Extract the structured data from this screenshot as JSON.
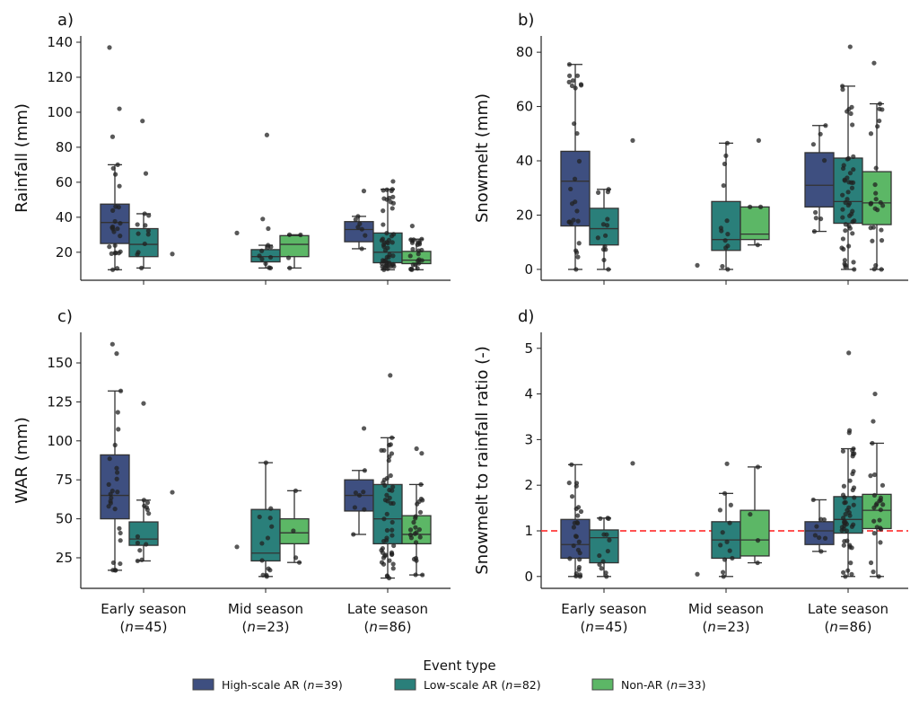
{
  "legend": {
    "title": "Event type",
    "items": [
      {
        "label_pre": "High-scale AR (",
        "n_sym": "n",
        "label_post": "=39)",
        "color": "#3e4f80"
      },
      {
        "label_pre": "Low-scale AR (",
        "n_sym": "n",
        "label_post": "=82)",
        "color": "#2a7f7a"
      },
      {
        "label_pre": "Non-AR (",
        "n_sym": "n",
        "label_post": "=33)",
        "color": "#5cb766"
      }
    ]
  },
  "categories": [
    {
      "label": "Early season",
      "n_pre": "(",
      "n_sym": "n",
      "n_post": "=45)"
    },
    {
      "label": "Mid season",
      "n_pre": "(",
      "n_sym": "n",
      "n_post": "=23)"
    },
    {
      "label": "Late season",
      "n_pre": "(",
      "n_sym": "n",
      "n_post": "=86)"
    }
  ],
  "chart_data": [
    {
      "type": "box",
      "panel": "a)",
      "ylabel": "Rainfall (mm)",
      "ylim": [
        4,
        143.6
      ],
      "yticks": [
        20,
        40,
        60,
        80,
        100,
        120,
        140
      ],
      "show_xticklabels": false,
      "groups": [
        [
          {
            "min": 10,
            "q1": 25,
            "med": 37,
            "q3": 47.5,
            "max": 70,
            "out": [
              137,
              102,
              86
            ],
            "n": 27
          },
          {
            "min": 11,
            "q1": 17.5,
            "med": 24.5,
            "q3": 33.5,
            "max": 42,
            "out": [
              95,
              65
            ],
            "n": 13
          },
          {
            "single": 19
          }
        ],
        [
          {
            "single": 31
          },
          {
            "min": 11,
            "q1": 14.5,
            "med": 17.5,
            "q3": 21.5,
            "max": 24,
            "out": [
              87,
              39,
              33.5
            ],
            "n": 13
          },
          {
            "min": 11,
            "q1": 17.5,
            "med": 24.5,
            "q3": 29.5,
            "max": 30,
            "out": [],
            "n": 4
          }
        ],
        [
          {
            "min": 22,
            "q1": 26,
            "med": 33,
            "q3": 37.5,
            "max": 40.5,
            "out": [
              55
            ],
            "n": 8
          },
          {
            "min": 10,
            "q1": 14,
            "med": 20,
            "q3": 31,
            "max": 56,
            "out": [
              60.5
            ],
            "n": 50
          },
          {
            "min": 10,
            "q1": 13.5,
            "med": 15.5,
            "q3": 20.5,
            "max": 27.5,
            "out": [
              35
            ],
            "n": 25
          }
        ]
      ]
    },
    {
      "type": "box",
      "panel": "b)",
      "ylabel": "Snowmelt (mm)",
      "ylim": [
        -4,
        86
      ],
      "yticks": [
        0,
        20,
        40,
        60,
        80
      ],
      "show_xticklabels": false,
      "groups": [
        [
          {
            "min": 0,
            "q1": 16,
            "med": 32.5,
            "q3": 43.5,
            "max": 75.5,
            "out": [],
            "n": 27
          },
          {
            "min": 0,
            "q1": 9,
            "med": 15,
            "q3": 22.5,
            "max": 29.5,
            "out": [],
            "n": 13
          },
          {
            "single": 47.5
          }
        ],
        [
          {
            "single": 1.5
          },
          {
            "min": 0,
            "q1": 7,
            "med": 11,
            "q3": 25,
            "max": 46.5,
            "out": [],
            "n": 13
          },
          {
            "min": 9,
            "q1": 11,
            "med": 13,
            "q3": 23,
            "max": 23,
            "out": [
              47.5
            ],
            "n": 4
          }
        ],
        [
          {
            "min": 14,
            "q1": 23,
            "med": 31,
            "q3": 43,
            "max": 53,
            "out": [],
            "n": 8
          },
          {
            "min": 0,
            "q1": 17,
            "med": 25,
            "q3": 41,
            "max": 67.5,
            "out": [
              82
            ],
            "n": 50
          },
          {
            "min": 0,
            "q1": 16.5,
            "med": 24.5,
            "q3": 36,
            "max": 61,
            "out": [
              76
            ],
            "n": 25
          }
        ]
      ]
    },
    {
      "type": "box",
      "panel": "c)",
      "ylabel": "WAR (mm)",
      "ylim": [
        5.4,
        169.6
      ],
      "yticks": [
        25,
        50,
        75,
        100,
        125,
        150
      ],
      "show_xticklabels": true,
      "groups": [
        [
          {
            "min": 17,
            "q1": 50,
            "med": 65,
            "q3": 91,
            "max": 132,
            "out": [
              162,
              156
            ],
            "n": 27
          },
          {
            "min": 23,
            "q1": 33,
            "med": 37,
            "q3": 48,
            "max": 62,
            "out": [
              124
            ],
            "n": 13
          },
          {
            "single": 67
          }
        ],
        [
          {
            "single": 32
          },
          {
            "min": 13,
            "q1": 23,
            "med": 28,
            "q3": 56,
            "max": 86,
            "out": [],
            "n": 13
          },
          {
            "min": 22,
            "q1": 34,
            "med": 41,
            "q3": 50,
            "max": 68,
            "out": [],
            "n": 4
          }
        ],
        [
          {
            "min": 40,
            "q1": 55,
            "med": 65,
            "q3": 75,
            "max": 81,
            "out": [
              108
            ],
            "n": 8
          },
          {
            "min": 12,
            "q1": 34,
            "med": 50,
            "q3": 72,
            "max": 102,
            "out": [
              142
            ],
            "n": 50
          },
          {
            "min": 14,
            "q1": 34,
            "med": 40,
            "q3": 52,
            "max": 72,
            "out": [
              95,
              92
            ],
            "n": 25
          }
        ]
      ]
    },
    {
      "type": "box",
      "panel": "d)",
      "ylabel": "Snowmelt to rainfall ratio (-)",
      "ylim": [
        -0.26,
        5.35
      ],
      "yticks": [
        0,
        1,
        2,
        3,
        4,
        5
      ],
      "show_xticklabels": true,
      "reference_line": {
        "y": 1,
        "color": "#ff3b3b",
        "style": "dashed"
      },
      "groups": [
        [
          {
            "min": 0,
            "q1": 0.4,
            "med": 0.7,
            "q3": 1.25,
            "max": 2.45,
            "out": [],
            "n": 27
          },
          {
            "min": 0,
            "q1": 0.3,
            "med": 0.85,
            "q3": 1.02,
            "max": 1.28,
            "out": [],
            "n": 13
          },
          {
            "single": 2.48
          }
        ],
        [
          {
            "single": 0.05
          },
          {
            "min": 0,
            "q1": 0.4,
            "med": 0.8,
            "q3": 1.2,
            "max": 1.82,
            "out": [
              2.47
            ],
            "n": 13
          },
          {
            "min": 0.3,
            "q1": 0.45,
            "med": 0.8,
            "q3": 1.45,
            "max": 2.4,
            "out": [],
            "n": 4
          }
        ],
        [
          {
            "min": 0.55,
            "q1": 0.7,
            "med": 1.0,
            "q3": 1.2,
            "max": 1.68,
            "out": [],
            "n": 8
          },
          {
            "min": 0,
            "q1": 0.95,
            "med": 1.25,
            "q3": 1.75,
            "max": 2.8,
            "out": [
              4.9,
              3.2,
              3.15
            ],
            "n": 50
          },
          {
            "min": 0,
            "q1": 1.05,
            "med": 1.45,
            "q3": 1.8,
            "max": 2.92,
            "out": [
              4.0,
              3.4
            ],
            "n": 25
          }
        ]
      ]
    }
  ]
}
